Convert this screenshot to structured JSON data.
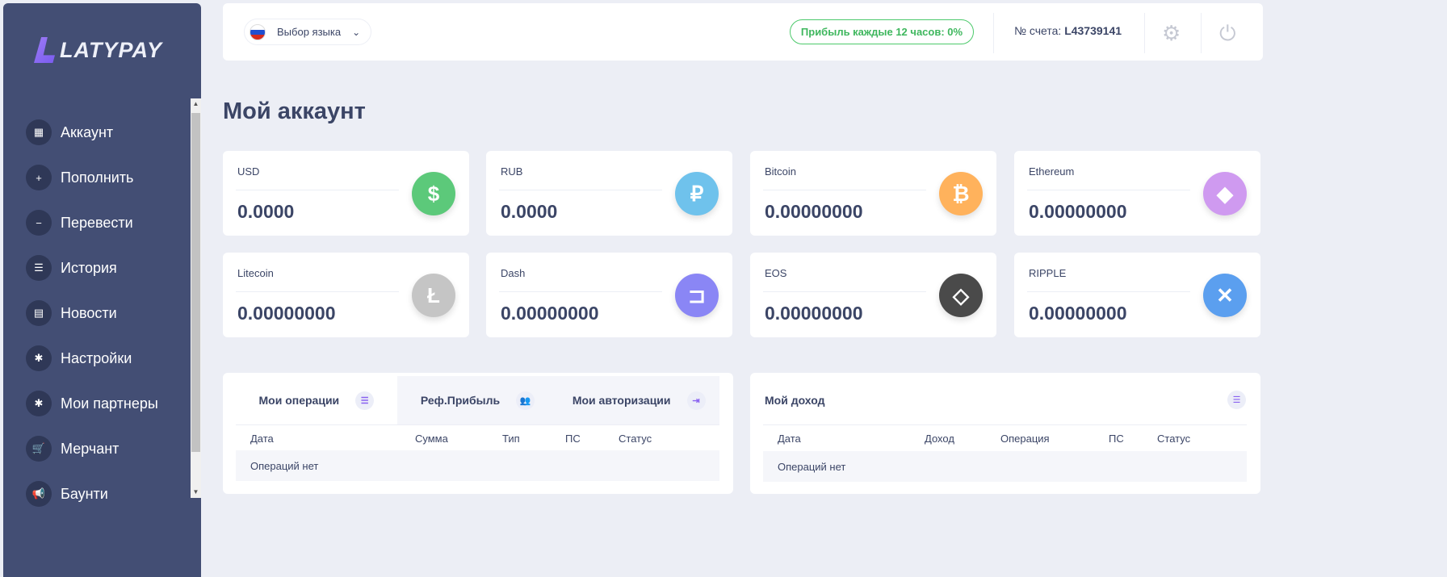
{
  "brand": {
    "name": "LATYPAY"
  },
  "sidebar": {
    "items": [
      {
        "label": "Аккаунт",
        "icon": "grid-icon",
        "glyph": "▦"
      },
      {
        "label": "Пополнить",
        "icon": "plus-icon",
        "glyph": "+"
      },
      {
        "label": "Перевести",
        "icon": "minus-icon",
        "glyph": "−"
      },
      {
        "label": "История",
        "icon": "list-icon",
        "glyph": "☰"
      },
      {
        "label": "Новости",
        "icon": "newspaper-icon",
        "glyph": "▤"
      },
      {
        "label": "Настройки",
        "icon": "gear-icon",
        "glyph": "✱"
      },
      {
        "label": "Мои партнеры",
        "icon": "gear-icon",
        "glyph": "✱"
      },
      {
        "label": "Мерчант",
        "icon": "cart-icon",
        "glyph": "🛒"
      },
      {
        "label": "Баунти",
        "icon": "megaphone-icon",
        "glyph": "📢"
      }
    ]
  },
  "header": {
    "language": "Выбор языка",
    "profit": "Прибыль каждые 12 часов: 0%",
    "account_label": "№ счета:",
    "account_number": "L43739141"
  },
  "page_title": "Мой аккаунт",
  "balances": [
    {
      "label": "USD",
      "value": "0.0000",
      "glyph": "$",
      "color": "#5cc97a",
      "icon": "dollar-icon"
    },
    {
      "label": "RUB",
      "value": "0.0000",
      "glyph": "₽",
      "color": "#6fc2ec",
      "icon": "ruble-icon"
    },
    {
      "label": "Bitcoin",
      "value": "0.00000000",
      "glyph": "₿",
      "color": "#ffb25c",
      "icon": "bitcoin-icon"
    },
    {
      "label": "Ethereum",
      "value": "0.00000000",
      "glyph": "◆",
      "color": "#cf9af0",
      "icon": "ethereum-icon"
    },
    {
      "label": "Litecoin",
      "value": "0.00000000",
      "glyph": "Ł",
      "color": "#c5c5c5",
      "icon": "litecoin-icon"
    },
    {
      "label": "Dash",
      "value": "0.00000000",
      "glyph": "⊐",
      "color": "#8a86f5",
      "icon": "dash-icon"
    },
    {
      "label": "EOS",
      "value": "0.00000000",
      "glyph": "◇",
      "color": "#4a4a4a",
      "icon": "eos-icon"
    },
    {
      "label": "RIPPLE",
      "value": "0.00000000",
      "glyph": "✕",
      "color": "#5b9fef",
      "icon": "ripple-icon"
    }
  ],
  "operations": {
    "tabs": [
      "Мои операции",
      "Реф.Прибыль",
      "Мои авторизации"
    ],
    "columns": [
      "Дата",
      "Сумма",
      "Тип",
      "ПС",
      "Статус"
    ],
    "empty": "Операций нет"
  },
  "income": {
    "title": "Мой доход",
    "columns": [
      "Дата",
      "Доход",
      "Операция",
      "ПС",
      "Статус"
    ],
    "empty": "Операций нет"
  }
}
